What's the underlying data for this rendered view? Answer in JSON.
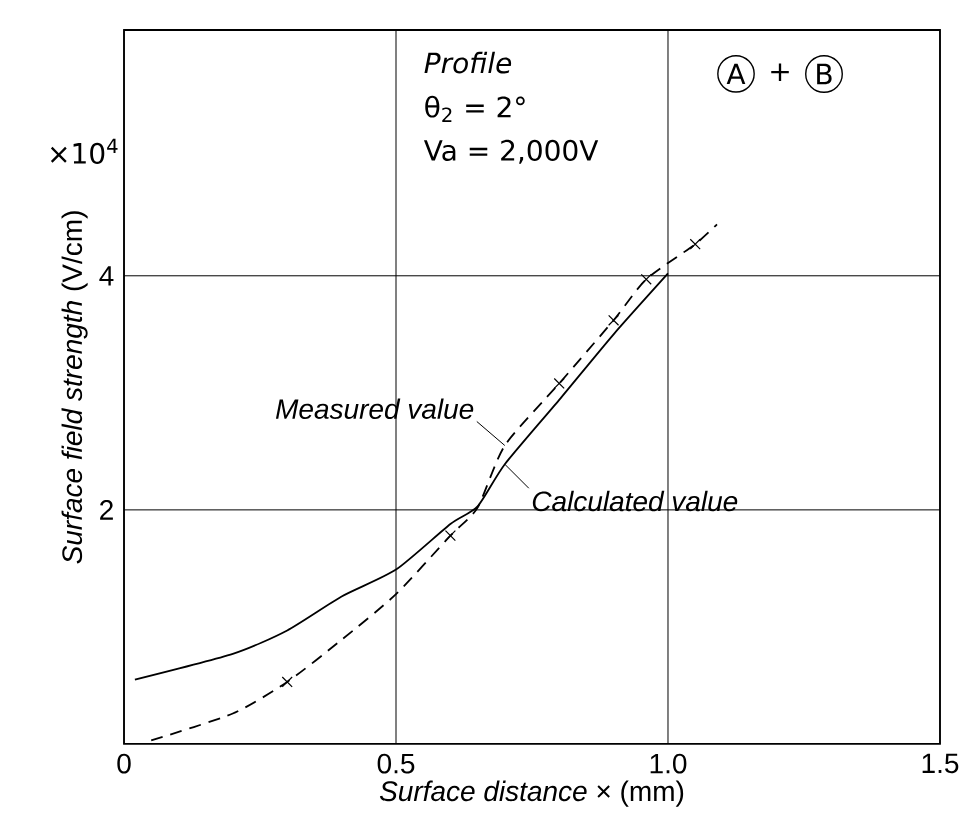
{
  "chart_data": {
    "type": "line",
    "xlabel": "*Surface distance* × (mm)",
    "ylabel": "*Surface field strength* (V/cm)",
    "annotations": [
      "*Profile*",
      "θ$_{2}$ = 2°",
      "Va = 2,000V",
      "A",
      "+",
      "B",
      "×10$^{4}$"
    ],
    "xlim": [
      0,
      1.5
    ],
    "xticks": [
      0,
      0.5,
      {
        "value": 1.0,
        "label": "1.0"
      },
      1.5
    ],
    "ylim": [
      0,
      6.1
    ],
    "yticks": [
      2,
      4
    ],
    "grid": true,
    "series": [
      {
        "name": "Measured value",
        "color": "#000000",
        "line_style": "dashed",
        "marker": "none",
        "x": [
          0.05,
          0.2,
          0.3,
          0.4,
          0.5,
          0.6,
          0.65,
          0.7,
          0.8,
          0.9,
          0.96,
          1.05,
          1.09
        ],
        "values": [
          0.03,
          0.26,
          0.53,
          0.89,
          1.28,
          1.78,
          2.02,
          2.55,
          3.08,
          3.62,
          3.97,
          4.27,
          4.44
        ]
      },
      {
        "name": "Calculated value",
        "color": "#000000",
        "line_style": "solid",
        "marker": "none",
        "x": [
          0.02,
          0.2,
          0.3,
          0.4,
          0.5,
          0.6,
          0.65,
          0.7,
          0.8,
          0.9,
          1.0
        ],
        "values": [
          0.55,
          0.77,
          0.97,
          1.26,
          1.49,
          1.88,
          2.03,
          2.39,
          2.94,
          3.5,
          4.02
        ]
      },
      {
        "type": "scatter",
        "color": "#000000",
        "marker": "cross",
        "x": [
          0.3,
          0.6,
          0.8,
          0.9,
          0.96,
          1.05
        ],
        "values": [
          0.53,
          1.78,
          3.08,
          3.62,
          3.97,
          4.27
        ]
      }
    ]
  }
}
